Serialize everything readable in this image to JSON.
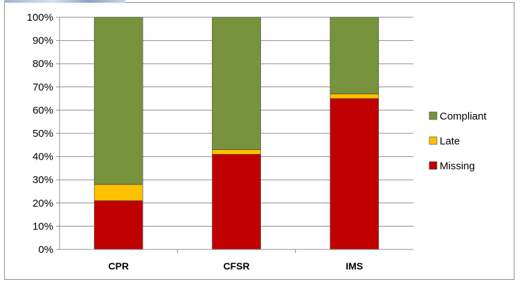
{
  "chart_data": {
    "type": "bar",
    "stacked": true,
    "percent": true,
    "categories": [
      "CPR",
      "CFSR",
      "IMS"
    ],
    "series": [
      {
        "name": "Missing",
        "values": [
          21,
          41,
          65
        ],
        "color": "#c00000"
      },
      {
        "name": "Late",
        "values": [
          7,
          2,
          2
        ],
        "color": "#ffc000"
      },
      {
        "name": "Compliant",
        "values": [
          72,
          57,
          33
        ],
        "color": "#77933c"
      }
    ],
    "yticks": [
      "0%",
      "10%",
      "20%",
      "30%",
      "40%",
      "50%",
      "60%",
      "70%",
      "80%",
      "90%",
      "100%"
    ],
    "ylim": [
      0,
      100
    ],
    "grid": true,
    "legend_position": "right",
    "legend_order": [
      "Compliant",
      "Late",
      "Missing"
    ]
  }
}
